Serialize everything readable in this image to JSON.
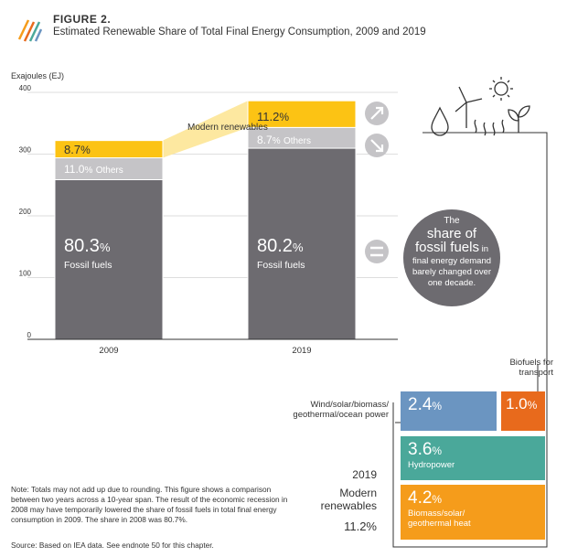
{
  "figure": {
    "label": "FIGURE 2.",
    "subtitle": "Estimated Renewable Share of Total Final Energy Consumption, 2009 and 2019"
  },
  "colors": {
    "fossil": "#6d6b70",
    "others": "#c5c4c7",
    "modern": "#fcc314",
    "modern_band": "#fde8a0",
    "wind_solar": "#6b95c1",
    "biofuels": "#e86a1c",
    "hydropower": "#4aa89a",
    "biomass_heat": "#f59c1b",
    "circle": "#6d6b70"
  },
  "chart_data": {
    "type": "bar",
    "stacked": true,
    "ylabel": "Exajoules (EJ)",
    "ylim": [
      0,
      400
    ],
    "yticks": [
      0,
      100,
      200,
      300,
      400
    ],
    "categories": [
      "2009",
      "2019"
    ],
    "totals": [
      322,
      386
    ],
    "series": [
      {
        "name": "Fossil fuels",
        "shares": [
          80.3,
          80.2
        ],
        "share_labels": [
          "80.3",
          "80.2"
        ],
        "unit": "%"
      },
      {
        "name": "Others",
        "shares": [
          11.0,
          8.7
        ],
        "share_labels": [
          "11.0",
          "8.7"
        ],
        "unit": "%"
      },
      {
        "name": "Modern renewables",
        "shares": [
          8.7,
          11.2
        ],
        "share_labels": [
          "8.7",
          "11.2"
        ],
        "unit": "%"
      }
    ],
    "annotations": {
      "modern_renewables": "Modern renewables",
      "others_suffix": "Others"
    }
  },
  "icons": {
    "up": "arrow-up-right-icon",
    "down": "arrow-down-right-icon",
    "equal": "equals-icon",
    "energy": "renewable-energy-icon",
    "logo": "stripes-logo"
  },
  "circle": {
    "line1": "The",
    "line2": "share of",
    "line3a": "fossil fuels",
    "line3b": " in",
    "line4": "final energy demand",
    "line5": "barely changed over",
    "line6": "one decade."
  },
  "breakdown": {
    "year": "2019",
    "title_line1": "Modern",
    "title_line2": "renewables",
    "total": "11.2%",
    "items": [
      {
        "value": "2.4",
        "unit": "%",
        "label": "Wind/solar/biomass/",
        "label2": "geothermal/ocean power"
      },
      {
        "value": "1.0",
        "unit": "%",
        "label": "Biofuels for",
        "label2": "transport"
      },
      {
        "value": "3.6",
        "unit": "%",
        "label": "Hydropower",
        "label2": ""
      },
      {
        "value": "4.2",
        "unit": "%",
        "label": "Biomass/solar/",
        "label2": "geothermal heat"
      }
    ]
  },
  "note": "Note: Totals may not add up due to rounding. This figure shows a comparison between two years across a 10-year span. The result of the economic recession in 2008 may have temporarily lowered the share of fossil fuels in total final energy consumption in 2009. The share in 2008 was 80.7%.",
  "source": "Source: Based on IEA data. See endnote 50 for this chapter."
}
